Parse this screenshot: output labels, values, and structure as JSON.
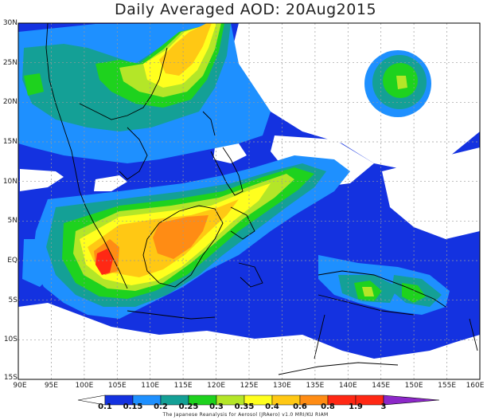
{
  "title": "Daily Averaged AOD: 20Aug2015",
  "axes": {
    "lat_labels": [
      "30N",
      "25N",
      "20N",
      "15N",
      "10N",
      "5N",
      "EQ",
      "5S",
      "10S",
      "15S"
    ],
    "lon_labels": [
      "90E",
      "95E",
      "100E",
      "105E",
      "110E",
      "115E",
      "120E",
      "125E",
      "130E",
      "135E",
      "140E",
      "145E",
      "150E",
      "155E",
      "160E"
    ],
    "lat_range": [
      -15,
      30
    ],
    "lon_range": [
      90,
      160
    ]
  },
  "colorbar": {
    "tick_labels": [
      "0.1",
      "0.15",
      "0.2",
      "0.25",
      "0.3",
      "0.35",
      "0.4",
      "0.6",
      "0.8",
      "1.9",
      "3"
    ],
    "colors": [
      "#ffffff",
      "#1432e0",
      "#1e90ff",
      "#14a096",
      "#1ed21e",
      "#b4e628",
      "#ffff1e",
      "#ffc814",
      "#ff8c14",
      "#ff2814",
      "#8c28c8"
    ]
  },
  "credit": "The Japanese Reanalysis for Aerosol (JRAero) v1.0 MRI/KU RIAM"
}
